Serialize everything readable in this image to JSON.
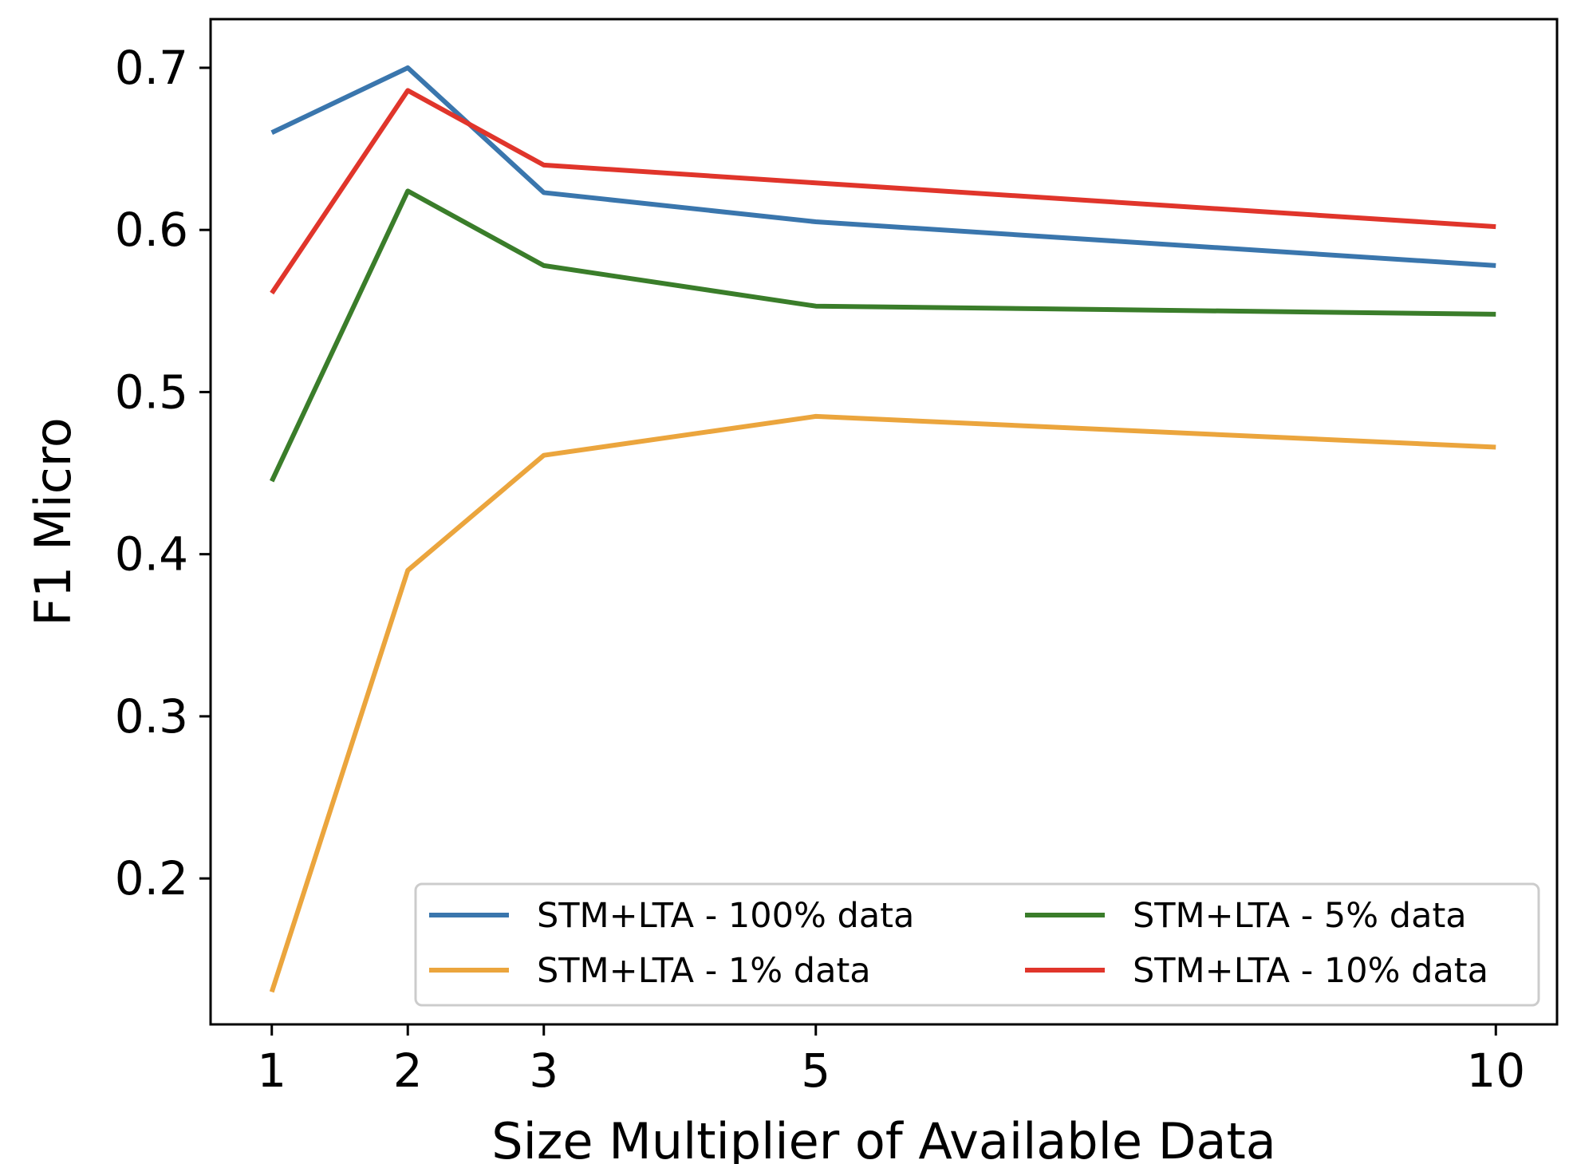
{
  "chart_data": {
    "type": "line",
    "title": "",
    "xlabel": "Size Multiplier of Available Data",
    "ylabel": "F1 Micro",
    "x": [
      1,
      2,
      3,
      5,
      10
    ],
    "xticks": [
      "1",
      "2",
      "3",
      "5",
      "10"
    ],
    "yticks": [
      "0.2",
      "0.3",
      "0.4",
      "0.5",
      "0.6",
      "0.7"
    ],
    "xlim": [
      0.55,
      10.45
    ],
    "ylim": [
      0.11,
      0.73
    ],
    "grid": false,
    "legend_position": "lower-right",
    "legend_columns": 2,
    "series": [
      {
        "name": "STM+LTA - 100% data",
        "color": "#3a76ad",
        "values": [
          0.66,
          0.7,
          0.623,
          0.605,
          0.578
        ]
      },
      {
        "name": "STM+LTA - 1% data",
        "color": "#eba53d",
        "values": [
          0.13,
          0.39,
          0.461,
          0.485,
          0.466
        ]
      },
      {
        "name": "STM+LTA - 5% data",
        "color": "#3a7d2a",
        "values": [
          0.445,
          0.624,
          0.578,
          0.553,
          0.548
        ]
      },
      {
        "name": "STM+LTA - 10% data",
        "color": "#e0352b",
        "values": [
          0.561,
          0.686,
          0.64,
          0.629,
          0.602
        ]
      }
    ]
  }
}
